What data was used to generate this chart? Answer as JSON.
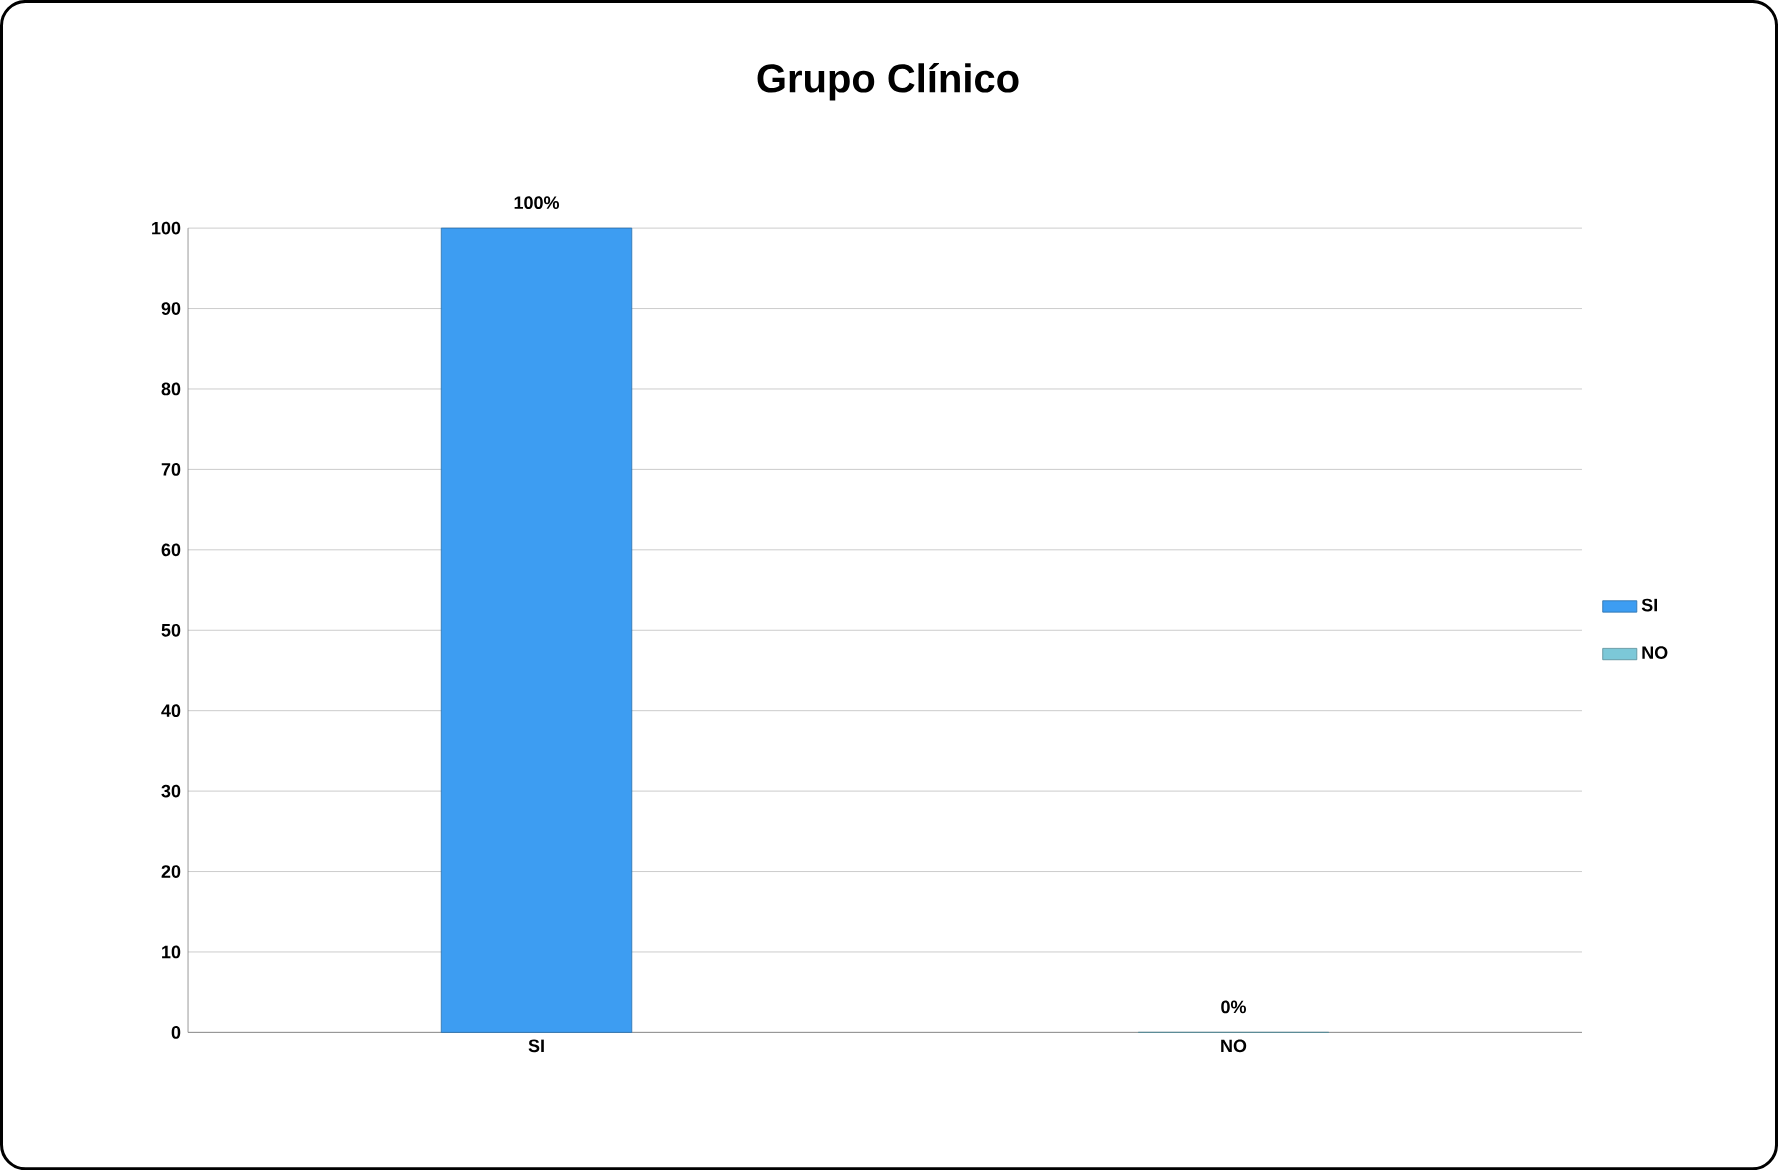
{
  "chart_data": {
    "type": "bar",
    "title": "Grupo Clínico",
    "categories": [
      "SI",
      "NO"
    ],
    "series": [
      {
        "name": "SI",
        "color": "#3d9df2",
        "values": [
          100,
          null
        ],
        "value_labels": [
          "100%",
          null
        ]
      },
      {
        "name": "NO",
        "color": "#7cc8d8",
        "values": [
          null,
          0
        ],
        "value_labels": [
          null,
          "0%"
        ]
      }
    ],
    "ylim": [
      0,
      100
    ],
    "yticks": [
      0,
      10,
      20,
      30,
      40,
      50,
      60,
      70,
      80,
      90,
      100
    ],
    "grid": "y",
    "legend": "right"
  }
}
